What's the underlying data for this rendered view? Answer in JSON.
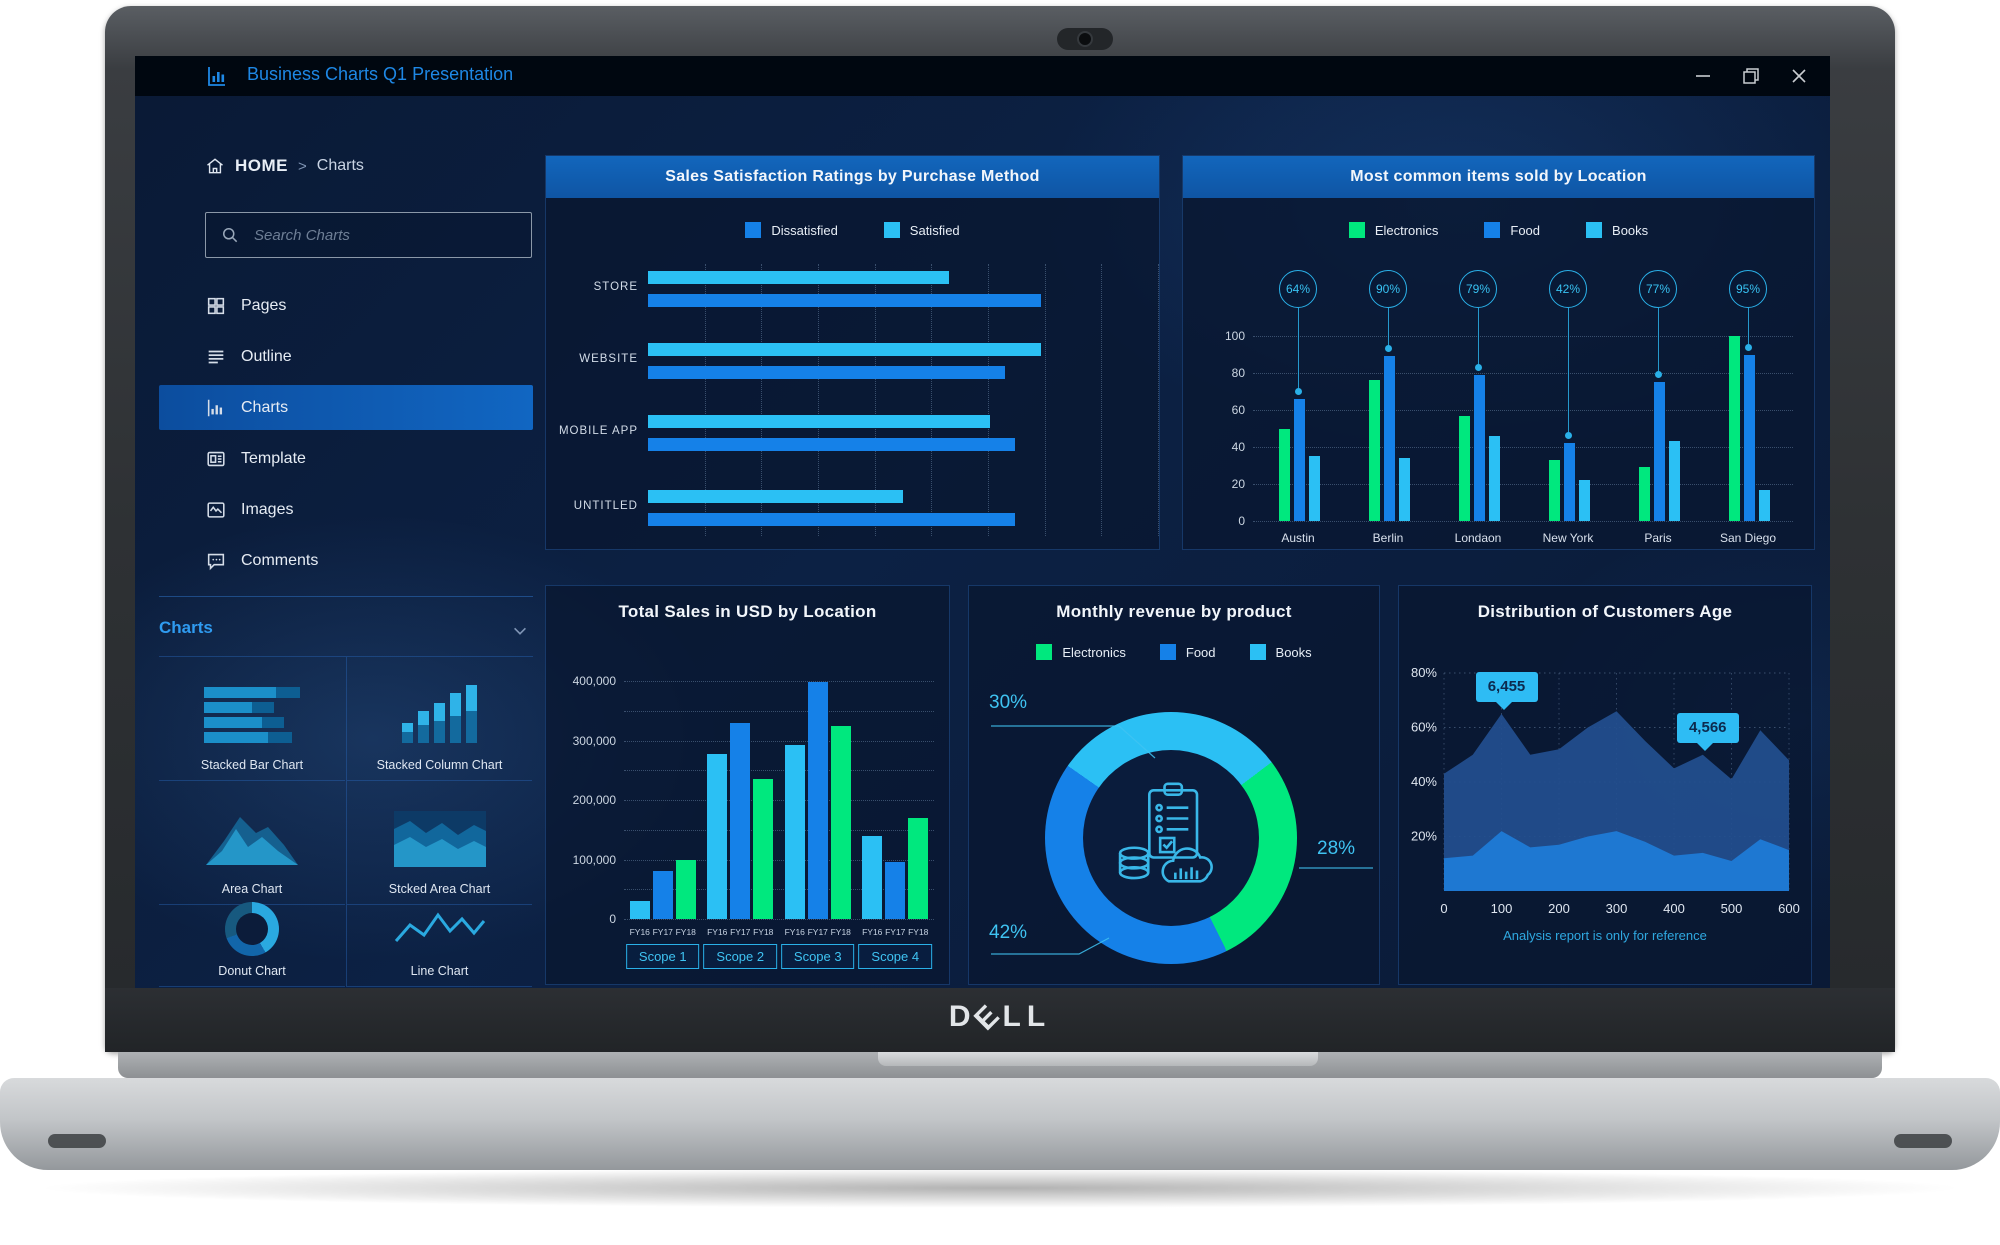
{
  "window": {
    "title": "Business Charts Q1 Presentation",
    "controls": [
      {
        "name": "minimize"
      },
      {
        "name": "restore"
      },
      {
        "name": "close"
      }
    ]
  },
  "brand": {
    "logo_text": "DELL"
  },
  "breadcrumb": {
    "home": "HOME",
    "separator": ">",
    "current": "Charts"
  },
  "search": {
    "placeholder": "Search Charts"
  },
  "sidebar": {
    "items": [
      {
        "label": "Pages",
        "icon": "pages-icon",
        "selected": false
      },
      {
        "label": "Outline",
        "icon": "outline-icon",
        "selected": false
      },
      {
        "label": "Charts",
        "icon": "charts-icon",
        "selected": true
      },
      {
        "label": "Template",
        "icon": "template-icon",
        "selected": false
      },
      {
        "label": "Images",
        "icon": "images-icon",
        "selected": false
      },
      {
        "label": "Comments",
        "icon": "comments-icon",
        "selected": false
      }
    ],
    "section_title": "Charts",
    "chart_types": [
      {
        "label": "Stacked Bar Chart",
        "glyph": "stacked-bar"
      },
      {
        "label": "Stacked Column Chart",
        "glyph": "stacked-column"
      },
      {
        "label": "Area Chart",
        "glyph": "area"
      },
      {
        "label": "Stcked Area Chart",
        "glyph": "stacked-area"
      },
      {
        "label": "Donut Chart",
        "glyph": "donut"
      },
      {
        "label": "Line Chart",
        "glyph": "line"
      }
    ]
  },
  "colors": {
    "blue": "#1581e8",
    "cyan": "#2bc0f4",
    "green": "#00e87e",
    "header_blue": "#1266bc",
    "title_text": "#1e88e5",
    "upper_area": "#234f8f",
    "lower_area": "#1f7ad6"
  },
  "chart_data": [
    {
      "id": "satisfaction-by-method",
      "type": "bar",
      "orientation": "horizontal",
      "title": "Sales Satisfaction Ratings by Purchase Method",
      "categories": [
        "STORE",
        "WEBSITE",
        "MOBILE APP",
        "UNTITLED"
      ],
      "legend": [
        {
          "label": "Dissatisfied",
          "color": "#1581e8"
        },
        {
          "label": "Satisfied",
          "color": "#2bc0f4"
        }
      ],
      "series": [
        {
          "name": "Satisfied",
          "color": "#2bc0f4",
          "values": [
            59,
            77,
            67,
            50
          ]
        },
        {
          "name": "Dissatisfied",
          "color": "#1581e8",
          "values": [
            77,
            70,
            72,
            72
          ]
        }
      ],
      "xlim": [
        0,
        100
      ],
      "grid": "vertical-dotted"
    },
    {
      "id": "items-by-location",
      "type": "bar",
      "title": "Most common items sold by Location",
      "categories": [
        "Austin",
        "Berlin",
        "Londaon",
        "New York",
        "Paris",
        "San Diego"
      ],
      "legend": [
        {
          "label": "Electronics",
          "color": "#00e87e"
        },
        {
          "label": "Food",
          "color": "#1581e8"
        },
        {
          "label": "Books",
          "color": "#2bc0f4"
        }
      ],
      "series": [
        {
          "name": "Electronics",
          "color": "#00e87e",
          "values": [
            50,
            76,
            57,
            33,
            29,
            100
          ]
        },
        {
          "name": "Food",
          "color": "#1581e8",
          "values": [
            66,
            89,
            79,
            42,
            75,
            90
          ]
        },
        {
          "name": "Books",
          "color": "#2bc0f4",
          "values": [
            35,
            34,
            46,
            22,
            43,
            17
          ]
        }
      ],
      "badges": [
        "64%",
        "90%",
        "79%",
        "42%",
        "77%",
        "95%"
      ],
      "yticks": [
        0,
        20,
        40,
        60,
        80,
        100
      ],
      "ylim": [
        0,
        100
      ]
    },
    {
      "id": "total-sales-by-location",
      "type": "bar",
      "title": "Total Sales in USD by Location",
      "groups": [
        "Scope 1",
        "Scope 2",
        "Scope 3",
        "Scope 4"
      ],
      "bar_labels": [
        "FY16",
        "FY17",
        "FY18"
      ],
      "series": [
        {
          "name": "FY16",
          "color": "#2bc0f4",
          "values": [
            30000,
            278000,
            292000,
            140000
          ]
        },
        {
          "name": "FY17",
          "color": "#1581e8",
          "values": [
            80000,
            330000,
            398000,
            95000
          ]
        },
        {
          "name": "FY18",
          "color": "#00e87e",
          "values": [
            100000,
            235000,
            325000,
            170000
          ]
        }
      ],
      "ytick_labels": [
        "0",
        "100,000",
        "200,000",
        "300,000",
        "400,000"
      ],
      "ylim": [
        0,
        400000
      ]
    },
    {
      "id": "monthly-revenue-by-product",
      "type": "pie",
      "title": "Monthly revenue by product",
      "legend": [
        {
          "label": "Electronics",
          "color": "#00e87e"
        },
        {
          "label": "Food",
          "color": "#1581e8"
        },
        {
          "label": "Books",
          "color": "#2bc0f4"
        }
      ],
      "slices": [
        {
          "label": "Books",
          "value": 30,
          "color": "#2bc0f4",
          "callout": "30%"
        },
        {
          "label": "Electronics",
          "value": 28,
          "color": "#00e87e",
          "callout": "28%"
        },
        {
          "label": "Food",
          "value": 42,
          "color": "#1581e8",
          "callout": "42%"
        }
      ]
    },
    {
      "id": "customers-age-distribution",
      "type": "area",
      "title": "Distribution of Customers Age",
      "x": [
        0,
        50,
        100,
        150,
        200,
        250,
        300,
        350,
        400,
        450,
        500,
        550,
        600
      ],
      "xticks": [
        0,
        100,
        200,
        300,
        400,
        500,
        600
      ],
      "ytick_labels": [
        "20%",
        "40%",
        "60%",
        "80%"
      ],
      "series": [
        {
          "name": "upper",
          "color": "#234f8f",
          "values": [
            43,
            50,
            65,
            50,
            52,
            60,
            66,
            55,
            45,
            50,
            41,
            59,
            48
          ]
        },
        {
          "name": "lower",
          "color": "#1f7ad6",
          "values": [
            12,
            13,
            22,
            16,
            17,
            20,
            22,
            18,
            13,
            14,
            11,
            19,
            15
          ]
        }
      ],
      "tooltips": [
        {
          "text": "6,455",
          "x": 100,
          "y": 65
        },
        {
          "text": "4,566",
          "x": 450,
          "y": 50
        }
      ],
      "caption": "Analysis report is only for reference"
    }
  ]
}
